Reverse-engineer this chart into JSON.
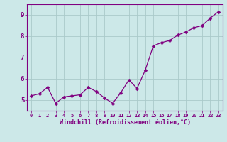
{
  "x": [
    0,
    1,
    2,
    3,
    4,
    5,
    6,
    7,
    8,
    9,
    10,
    11,
    12,
    13,
    14,
    15,
    16,
    17,
    18,
    19,
    20,
    21,
    22,
    23
  ],
  "y": [
    5.2,
    5.3,
    5.6,
    4.85,
    5.15,
    5.2,
    5.25,
    5.6,
    5.4,
    5.1,
    4.85,
    5.35,
    5.95,
    5.55,
    6.4,
    7.55,
    7.7,
    7.8,
    8.05,
    8.2,
    8.4,
    8.5,
    8.85,
    9.15
  ],
  "line_color": "#800080",
  "marker": "D",
  "marker_size": 2.5,
  "bg_color": "#cce8e8",
  "grid_color": "#aacaca",
  "xlabel": "Windchill (Refroidissement éolien,°C)",
  "tick_color": "#800080",
  "ylim": [
    4.5,
    9.5
  ],
  "xlim": [
    -0.5,
    23.5
  ],
  "yticks": [
    5,
    6,
    7,
    8,
    9
  ],
  "xticks": [
    0,
    1,
    2,
    3,
    4,
    5,
    6,
    7,
    8,
    9,
    10,
    11,
    12,
    13,
    14,
    15,
    16,
    17,
    18,
    19,
    20,
    21,
    22,
    23
  ],
  "xtick_labels": [
    "0",
    "1",
    "2",
    "3",
    "4",
    "5",
    "6",
    "7",
    "8",
    "9",
    "10",
    "11",
    "12",
    "13",
    "14",
    "15",
    "16",
    "17",
    "18",
    "19",
    "20",
    "21",
    "22",
    "23"
  ],
  "spine_color": "#800080",
  "figsize": [
    3.2,
    2.0
  ],
  "dpi": 100
}
